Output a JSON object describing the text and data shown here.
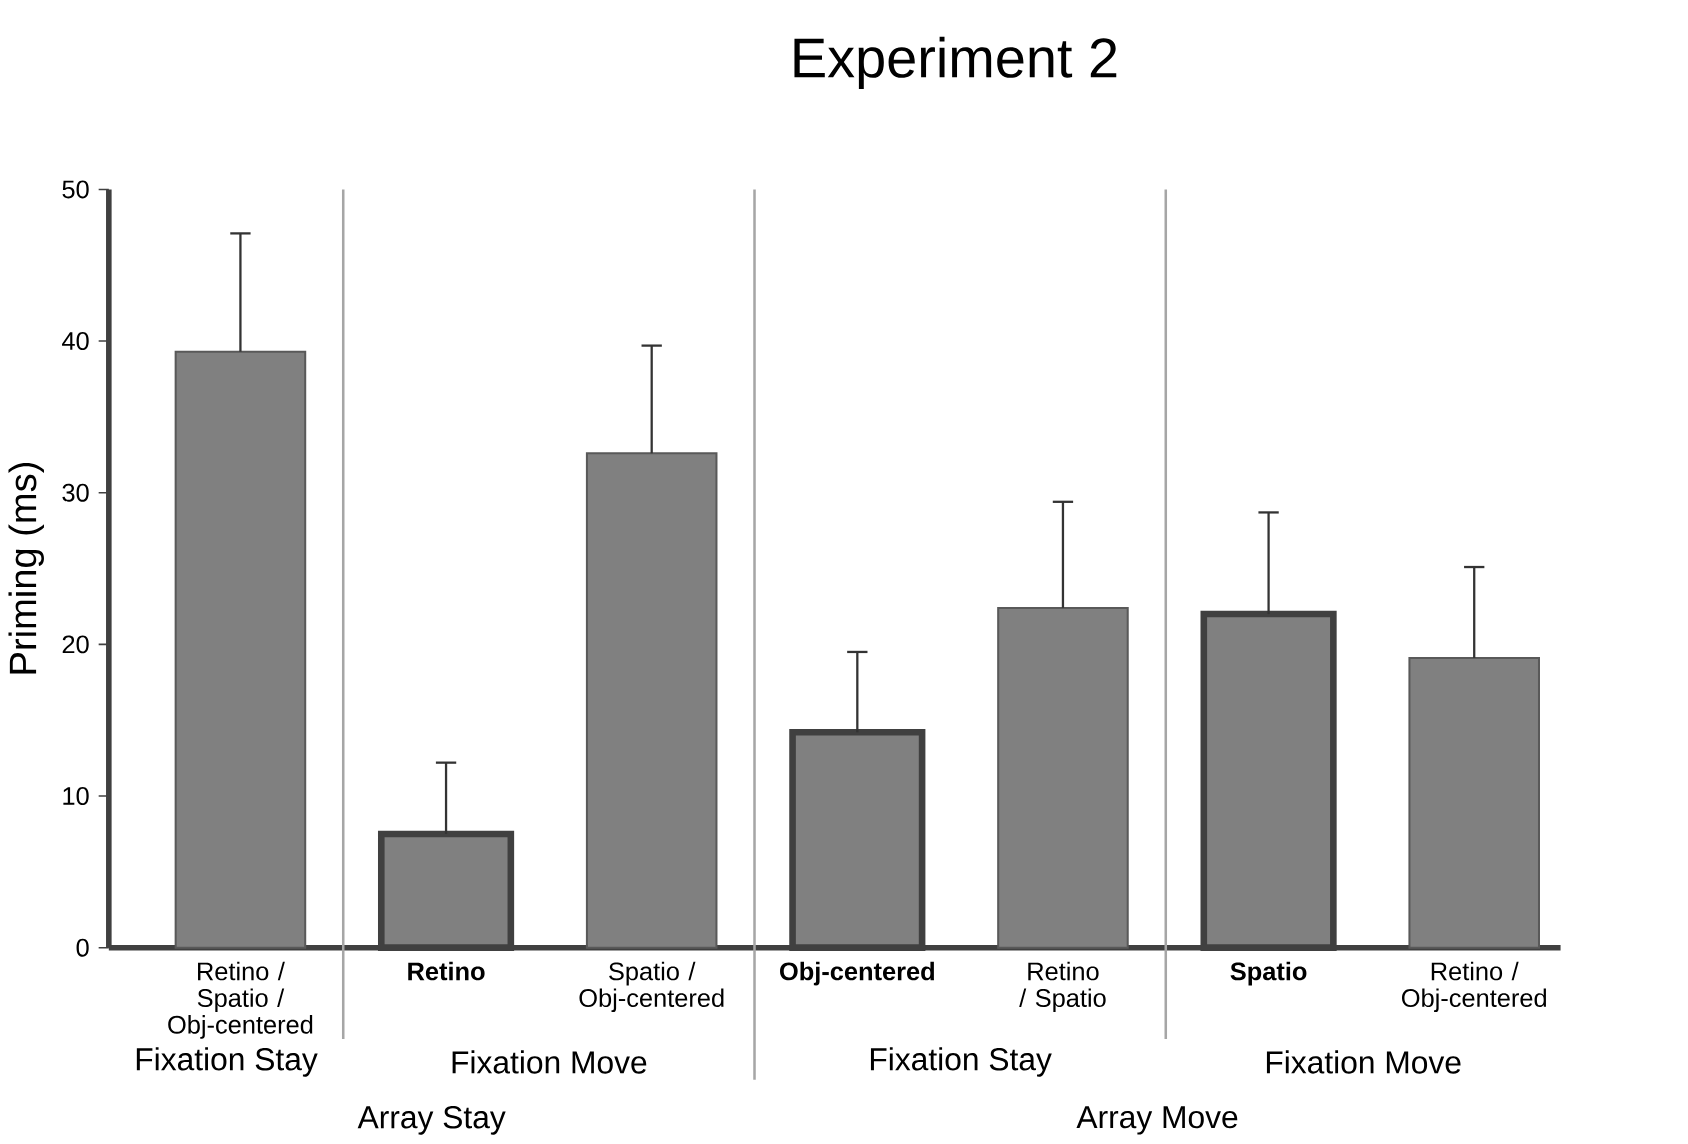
{
  "chart_data": {
    "type": "bar",
    "title": "Experiment 2",
    "ylabel": "Priming (ms)",
    "categories": [
      "Retino / Spatio / Obj-centered",
      "**Retino**",
      "Spatio / Obj-centered",
      "**Obj-centered**",
      "Retino / Spatio",
      "**Spatio**",
      "Retino / Obj-centered"
    ],
    "values": [
      39.3,
      7.5,
      32.6,
      14.2,
      22.4,
      22.0,
      19.1
    ],
    "errors": [
      [
        39.3,
        47.1
      ],
      [
        7.5,
        12.2
      ],
      [
        32.6,
        39.7
      ],
      [
        14.2,
        19.5
      ],
      [
        22.4,
        29.4
      ],
      [
        22.0,
        28.7
      ],
      [
        19.1,
        25.1
      ]
    ],
    "color": "#808080",
    "ylim": [
      0,
      50
    ],
    "yticks": [
      0,
      10,
      20,
      30,
      40,
      50
    ],
    "annotations": [
      "Fixation Stay",
      "Fixation Move",
      "Fixation Stay",
      "Fixation Move",
      "Array Stay",
      "Array Move"
    ],
    "grid": false
  }
}
